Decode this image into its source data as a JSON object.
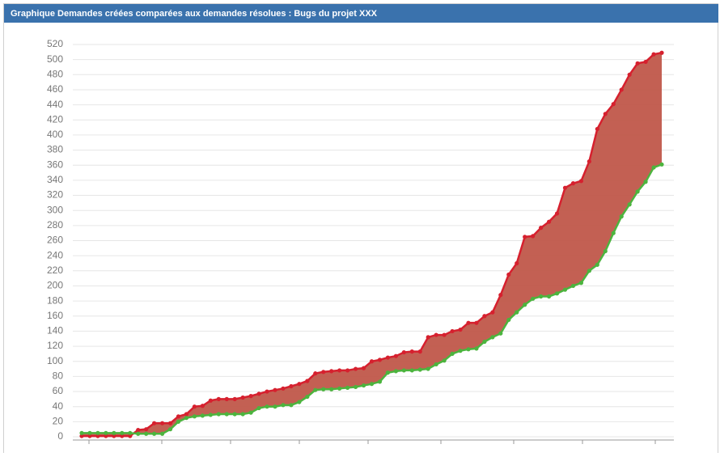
{
  "chart_data": {
    "type": "line",
    "title": "Graphique Demandes créées comparées aux demandes résolues : Bugs du projet XXX",
    "ylim": [
      0,
      520
    ],
    "yticks": [
      0,
      20,
      40,
      60,
      80,
      100,
      120,
      140,
      160,
      180,
      200,
      220,
      240,
      260,
      280,
      300,
      320,
      340,
      360,
      380,
      400,
      420,
      440,
      460,
      480,
      500,
      520
    ],
    "grid": true,
    "fill_between": "#c0574a",
    "series": [
      {
        "color": "#d6202e",
        "values": [
          1,
          1,
          1,
          1,
          1,
          1,
          1,
          9,
          10,
          18,
          18,
          18,
          27,
          30,
          40,
          41,
          48,
          50,
          50,
          50,
          52,
          54,
          57,
          60,
          62,
          64,
          67,
          70,
          74,
          84,
          86,
          87,
          88,
          88,
          90,
          91,
          100,
          102,
          105,
          107,
          112,
          113,
          113,
          132,
          135,
          135,
          140,
          142,
          151,
          151,
          160,
          165,
          188,
          215,
          230,
          265,
          266,
          277,
          285,
          296,
          330,
          336,
          339,
          365,
          408,
          428,
          441,
          460,
          480,
          495,
          497,
          507,
          509
        ]
      },
      {
        "color": "#4cb43e",
        "values": [
          5,
          5,
          5,
          5,
          5,
          5,
          5,
          4,
          4,
          4,
          4,
          10,
          20,
          25,
          27,
          28,
          29,
          30,
          30,
          30,
          30,
          32,
          38,
          40,
          40,
          42,
          42,
          46,
          53,
          62,
          63,
          63,
          64,
          65,
          66,
          68,
          70,
          73,
          85,
          87,
          88,
          88,
          89,
          90,
          96,
          101,
          110,
          114,
          116,
          117,
          126,
          132,
          137,
          155,
          165,
          175,
          183,
          186,
          186,
          190,
          195,
          200,
          204,
          220,
          228,
          246,
          270,
          292,
          308,
          325,
          338,
          357,
          361
        ]
      }
    ]
  }
}
